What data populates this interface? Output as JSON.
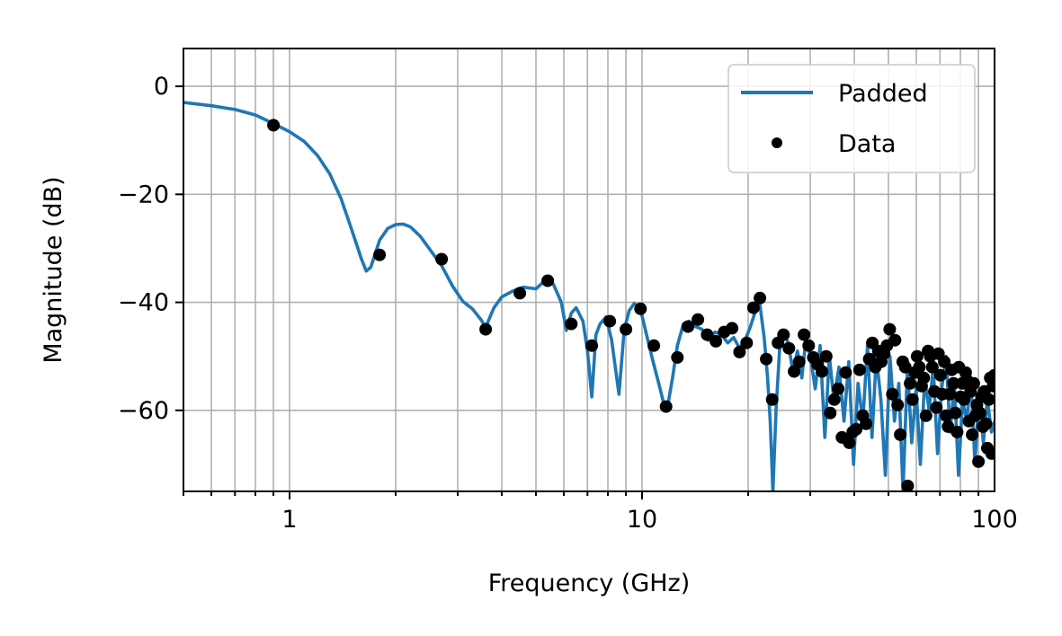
{
  "chart_data": {
    "type": "line",
    "title": "",
    "xlabel": "Frequency (GHz)",
    "ylabel": "Magnitude (dB)",
    "xscale": "log",
    "xlim": [
      0.5,
      100
    ],
    "ylim": [
      -75,
      7
    ],
    "grid": true,
    "legend_position": "top-right",
    "x_tick_labels": [
      "1",
      "10",
      "100"
    ],
    "y_tick_labels": [
      "0",
      "−20",
      "−40",
      "−60"
    ],
    "series": [
      {
        "name": "Padded",
        "kind": "line",
        "color": "#1f77b4",
        "x": [
          0.5,
          0.6,
          0.7,
          0.8,
          0.9,
          1.0,
          1.1,
          1.2,
          1.3,
          1.4,
          1.5,
          1.6,
          1.65,
          1.7,
          1.75,
          1.8,
          1.9,
          2.0,
          2.1,
          2.2,
          2.35,
          2.5,
          2.7,
          2.9,
          3.1,
          3.3,
          3.5,
          3.6,
          3.8,
          4.0,
          4.3,
          4.6,
          5.0,
          5.3,
          5.6,
          5.9,
          6.1,
          6.3,
          6.5,
          6.8,
          7.0,
          7.2,
          7.4,
          7.6,
          7.9,
          8.2,
          8.6,
          8.9,
          9.2,
          9.5,
          9.9,
          10.3,
          10.7,
          11.1,
          11.5,
          11.8,
          12.2,
          12.6,
          13.1,
          13.6,
          14.2,
          14.8,
          15.4,
          16.1,
          16.8,
          17.5,
          18.2,
          18.9,
          19.6,
          20.3,
          21.0,
          21.6,
          22.2,
          22.7,
          23.1,
          23.5,
          24.0,
          24.6,
          25.3,
          26.0,
          26.8,
          27.6,
          28.4,
          29.2,
          30.1,
          31.0,
          32.0,
          33.0,
          34.0,
          35.0,
          36.2,
          37.4,
          38.6,
          39.8,
          41.0,
          42.3,
          43.6,
          44.9,
          46.2,
          47.6,
          49.0,
          50.5,
          52.0,
          53.5,
          55.0,
          56.6,
          58.2,
          59.9,
          61.6,
          63.4,
          65.2,
          67.0,
          68.9,
          70.8,
          72.8,
          74.8,
          76.9,
          79.0,
          81.2,
          83.4,
          85.7,
          88.0,
          90.4,
          92.9,
          95.4,
          98.0,
          100
        ],
        "y": [
          -3.0,
          -3.6,
          -4.3,
          -5.3,
          -6.9,
          -8.4,
          -10.2,
          -12.8,
          -16.2,
          -20.8,
          -26.5,
          -32.0,
          -34.2,
          -33.5,
          -31.0,
          -28.5,
          -26.3,
          -25.6,
          -25.5,
          -26.0,
          -27.8,
          -30.2,
          -33.2,
          -37.0,
          -39.8,
          -41.2,
          -43.3,
          -44.6,
          -41.0,
          -39.0,
          -37.9,
          -37.2,
          -37.5,
          -36.0,
          -36.6,
          -40.0,
          -45.2,
          -42.0,
          -41.0,
          -43.5,
          -49.0,
          -57.5,
          -46.0,
          -44.0,
          -42.7,
          -47.0,
          -57.0,
          -45.0,
          -41.5,
          -40.2,
          -41.3,
          -46.0,
          -50.5,
          -54.5,
          -58.5,
          -59.5,
          -54.0,
          -48.0,
          -44.0,
          -43.5,
          -44.5,
          -45.0,
          -47.0,
          -45.5,
          -46.0,
          -47.5,
          -46.5,
          -48.5,
          -47.0,
          -44.5,
          -41.5,
          -40.5,
          -46.5,
          -54.0,
          -62.0,
          -75.0,
          -60.0,
          -48.0,
          -46.0,
          -47.5,
          -53.0,
          -49.0,
          -54.0,
          -46.5,
          -50.5,
          -56.0,
          -48.0,
          -65.0,
          -50.0,
          -58.0,
          -52.0,
          -62.0,
          -51.0,
          -70.0,
          -55.0,
          -62.0,
          -48.0,
          -65.0,
          -50.0,
          -58.0,
          -72.0,
          -50.0,
          -62.0,
          -55.0,
          -75.0,
          -52.0,
          -66.0,
          -56.0,
          -70.0,
          -54.0,
          -60.0,
          -52.0,
          -68.0,
          -56.0,
          -50.0,
          -64.0,
          -55.0,
          -72.0,
          -58.0,
          -62.0,
          -54.0,
          -70.0,
          -56.0,
          -66.0,
          -58.0,
          -64.0,
          -62.0
        ]
      },
      {
        "name": "Data",
        "kind": "scatter",
        "color": "#000000",
        "x": [
          0.9,
          1.8,
          2.7,
          3.6,
          4.5,
          5.4,
          6.3,
          7.2,
          8.1,
          9.0,
          9.9,
          10.8,
          11.7,
          12.6,
          13.5,
          14.4,
          15.3,
          16.2,
          17.1,
          18.0,
          18.9,
          19.8,
          20.7,
          21.6,
          22.5,
          23.4,
          24.3,
          25.2,
          26.1,
          27.0,
          27.9,
          28.8,
          29.7,
          30.6,
          31.5,
          32.4,
          33.3,
          34.2,
          35.1,
          36.0,
          36.9,
          37.8,
          38.7,
          39.6,
          40.5,
          41.4,
          42.3,
          43.2,
          44.1,
          45.0,
          45.9,
          46.8,
          47.7,
          48.6,
          49.5,
          50.4,
          51.3,
          52.2,
          53.1,
          54.0,
          54.9,
          55.8,
          56.7,
          57.6,
          58.5,
          59.4,
          60.3,
          61.2,
          62.1,
          63.0,
          63.9,
          64.8,
          65.7,
          66.6,
          67.5,
          68.4,
          69.3,
          70.2,
          71.1,
          72.0,
          72.9,
          73.8,
          74.7,
          75.6,
          76.5,
          77.4,
          78.3,
          79.2,
          80.1,
          81.0,
          81.9,
          82.8,
          83.7,
          84.6,
          85.5,
          86.4,
          87.3,
          88.2,
          89.1,
          90.0,
          90.9,
          91.8,
          92.7,
          93.6,
          94.5,
          95.4,
          96.3,
          97.2,
          98.1,
          99.0,
          99.9
        ],
        "y": [
          -7.2,
          -31.2,
          -32.0,
          -45.0,
          -38.3,
          -36.0,
          -44.0,
          -48.0,
          -43.5,
          -45.0,
          -41.2,
          -48.0,
          -59.3,
          -50.2,
          -44.5,
          -43.2,
          -46.0,
          -47.2,
          -45.5,
          -44.8,
          -49.2,
          -47.5,
          -41.0,
          -39.2,
          -50.5,
          -58.0,
          -47.5,
          -46.0,
          -48.5,
          -52.8,
          -51.0,
          -46.0,
          -48.0,
          -50.2,
          -51.5,
          -52.8,
          -50.0,
          -60.5,
          -58.0,
          -56.0,
          -65.0,
          -53.0,
          -66.0,
          -64.0,
          -63.5,
          -52.5,
          -61.0,
          -62.5,
          -50.5,
          -47.5,
          -52.0,
          -49.0,
          -51.0,
          -49.5,
          -48.0,
          -45.0,
          -57.0,
          -47.0,
          -59.0,
          -64.5,
          -51.0,
          -52.0,
          -74.0,
          -55.0,
          -58.0,
          -53.0,
          -50.0,
          -52.0,
          -55.5,
          -54.0,
          -61.0,
          -49.0,
          -50.0,
          -52.0,
          -56.5,
          -59.5,
          -49.5,
          -53.5,
          -57.0,
          -51.0,
          -61.0,
          -63.0,
          -57.0,
          -52.5,
          -55.0,
          -60.5,
          -64.0,
          -52.0,
          -57.5,
          -55.0,
          -58.0,
          -53.0,
          -54.5,
          -62.0,
          -56.5,
          -64.5,
          -55.0,
          -61.0,
          -59.0,
          -69.5,
          -60.5,
          -57.5,
          -63.0,
          -56.5,
          -62.5,
          -67.0,
          -58.0,
          -54.0,
          -68.0,
          -55.5,
          -53.5
        ]
      }
    ]
  }
}
